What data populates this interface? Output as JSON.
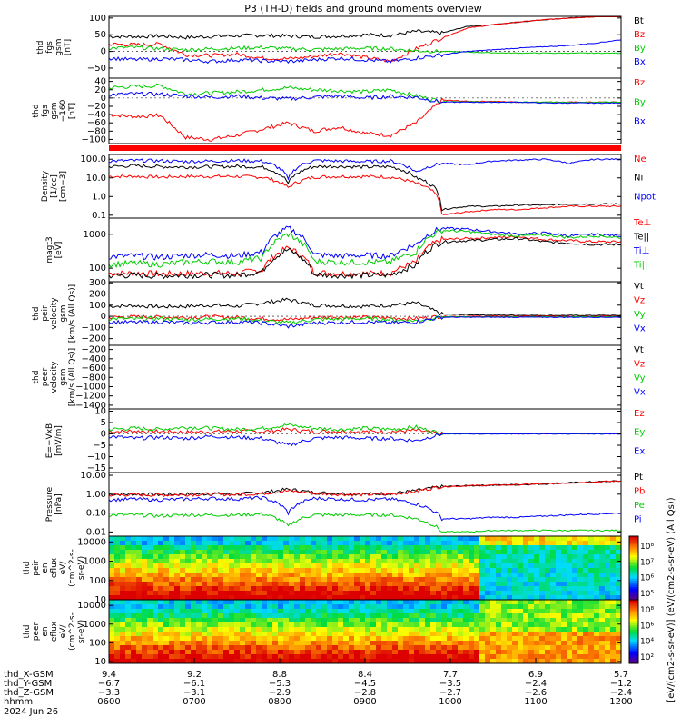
{
  "title": "P3 (TH-D) fields and ground moments overview",
  "chart_data": [
    {
      "type": "line",
      "ylabel_lines": [
        "thd",
        "fgs",
        "gsm",
        "[nT]"
      ],
      "y_ticks": [
        "100",
        "50",
        "0",
        "−50"
      ],
      "ylim": [
        -80,
        105
      ],
      "tick_values": [
        100,
        50,
        0,
        -50
      ],
      "series": [
        {
          "name": "Bt",
          "color": "#000000",
          "values": [
            45,
            44,
            46,
            42,
            45,
            47,
            48,
            46,
            44,
            46,
            50,
            48,
            60,
            55,
            75,
            80,
            88,
            95,
            100,
            104,
            110
          ]
        },
        {
          "name": "Bz",
          "color": "#ff0000",
          "values": [
            22,
            20,
            22,
            -10,
            -12,
            -8,
            -20,
            -22,
            -15,
            -5,
            -18,
            -30,
            8,
            40,
            70,
            80,
            88,
            95,
            100,
            104,
            110
          ]
        },
        {
          "name": "By",
          "color": "#00cc00",
          "values": [
            10,
            12,
            8,
            5,
            8,
            10,
            12,
            8,
            6,
            8,
            10,
            8,
            2,
            0,
            -2,
            -4,
            -5,
            -5,
            -5,
            -5,
            -5
          ]
        },
        {
          "name": "Bx",
          "color": "#0000ff",
          "values": [
            -20,
            -25,
            -22,
            -25,
            -30,
            -25,
            -28,
            -30,
            -25,
            -20,
            -25,
            -30,
            -20,
            -10,
            0,
            5,
            10,
            14,
            18,
            25,
            35
          ]
        }
      ]
    },
    {
      "type": "line",
      "ylabel_lines": [
        "thd",
        "fgs",
        "gsm",
        "−160",
        "[nT]"
      ],
      "y_ticks": [
        "40",
        "20",
        "0",
        "−20",
        "−40",
        "−60",
        "−80",
        "−100"
      ],
      "ylim": [
        -110,
        48
      ],
      "tick_values": [
        40,
        20,
        0,
        -20,
        -40,
        -60,
        -80,
        -100
      ],
      "series": [
        {
          "name": "Bz",
          "color": "#ff0000",
          "values": [
            -40,
            -45,
            -42,
            -95,
            -100,
            -90,
            -75,
            -60,
            -80,
            -70,
            -85,
            -90,
            -60,
            -5,
            -8,
            -8,
            -10,
            -10,
            -10,
            -10,
            -10
          ]
        },
        {
          "name": "By",
          "color": "#00cc00",
          "values": [
            25,
            28,
            30,
            10,
            12,
            15,
            20,
            25,
            20,
            18,
            15,
            20,
            5,
            -8,
            -9,
            -10,
            -10,
            -10,
            -10,
            -10,
            -10
          ]
        },
        {
          "name": "Bx",
          "color": "#0000ff",
          "values": [
            8,
            10,
            9,
            5,
            2,
            5,
            0,
            -2,
            2,
            5,
            0,
            4,
            2,
            -10,
            -10,
            -10,
            -10,
            -12,
            -12,
            -12,
            -12
          ]
        }
      ]
    },
    {
      "type": "line",
      "log": true,
      "ylabel_lines": [
        "Density",
        "[1/cc]",
        "[cm−3]"
      ],
      "y_ticks": [
        "100.0",
        "10.0",
        "1.0",
        "0.1"
      ],
      "ylim": [
        0.07,
        180
      ],
      "tick_values": [
        100,
        10,
        1,
        0.1
      ],
      "series": [
        {
          "name": "Ne",
          "color": "#ff0000",
          "values": [
            12,
            12,
            11,
            12,
            12,
            12,
            11,
            3,
            11,
            12,
            12,
            11,
            5,
            0.1,
            0.15,
            0.2,
            0.2,
            0.25,
            0.3,
            0.3,
            0.3
          ]
        },
        {
          "name": "Ni",
          "color": "#000000",
          "values": [
            40,
            45,
            40,
            38,
            40,
            42,
            38,
            5,
            40,
            42,
            38,
            40,
            10,
            0.2,
            0.3,
            0.3,
            0.35,
            0.35,
            0.4,
            0.4,
            0.4
          ]
        },
        {
          "name": "Npot",
          "color": "#0000ff",
          "values": [
            80,
            85,
            82,
            75,
            80,
            85,
            78,
            8,
            85,
            80,
            75,
            80,
            20,
            60,
            50,
            80,
            90,
            100,
            60,
            100,
            100
          ]
        }
      ]
    },
    {
      "type": "line",
      "log": true,
      "ylabel_lines": [
        "magt3",
        "[eV]"
      ],
      "y_ticks": [
        "1000",
        "100"
      ],
      "ylim": [
        40,
        3000
      ],
      "tick_values": [
        1000,
        100
      ],
      "series": [
        {
          "name": "Te⊥",
          "color": "#ff0000",
          "values": [
            70,
            72,
            68,
            70,
            72,
            70,
            90,
            400,
            75,
            70,
            70,
            72,
            150,
            700,
            750,
            800,
            850,
            700,
            650,
            600,
            600
          ]
        },
        {
          "name": "Te||",
          "color": "#000000",
          "values": [
            60,
            62,
            60,
            62,
            63,
            62,
            80,
            350,
            65,
            62,
            62,
            63,
            120,
            600,
            650,
            700,
            750,
            600,
            550,
            500,
            500
          ]
        },
        {
          "name": "Ti⊥",
          "color": "#0000ff",
          "values": [
            220,
            230,
            210,
            240,
            250,
            230,
            300,
            1500,
            250,
            230,
            240,
            230,
            500,
            1500,
            1400,
            1200,
            1000,
            1100,
            900,
            1000,
            900
          ]
        },
        {
          "name": "Ti||",
          "color": "#00cc00",
          "values": [
            130,
            140,
            130,
            150,
            160,
            150,
            200,
            1000,
            160,
            150,
            150,
            150,
            300,
            1300,
            1200,
            1000,
            900,
            950,
            800,
            900,
            800
          ]
        }
      ]
    },
    {
      "type": "line",
      "ylabel_lines": [
        "thd",
        "peir",
        "velocity",
        "gsm",
        "[km/s (All Qs)]"
      ],
      "y_ticks": [
        "300",
        "200",
        "100",
        "0",
        "−100",
        "−200"
      ],
      "ylim": [
        -260,
        310
      ],
      "tick_values": [
        300,
        200,
        100,
        0,
        -100,
        -200
      ],
      "series": [
        {
          "name": "Vt",
          "color": "#000000",
          "values": [
            90,
            95,
            85,
            90,
            100,
            90,
            120,
            150,
            100,
            95,
            90,
            100,
            120,
            20,
            15,
            10,
            10,
            8,
            8,
            8,
            8
          ]
        },
        {
          "name": "Vz",
          "color": "#ff0000",
          "values": [
            -10,
            -5,
            -8,
            -10,
            -5,
            -10,
            -20,
            -30,
            -10,
            -5,
            -10,
            -15,
            -20,
            0,
            0,
            0,
            0,
            0,
            0,
            0,
            0
          ]
        },
        {
          "name": "Vy",
          "color": "#00cc00",
          "values": [
            -20,
            -25,
            -20,
            -30,
            -25,
            -20,
            -40,
            -60,
            -30,
            -25,
            -20,
            -30,
            -40,
            -5,
            -5,
            -5,
            -5,
            -5,
            -5,
            -5,
            -5
          ]
        },
        {
          "name": "Vx",
          "color": "#0000ff",
          "values": [
            -50,
            -55,
            -50,
            -60,
            -55,
            -50,
            -60,
            -90,
            -60,
            -55,
            -50,
            -60,
            -50,
            -8,
            -8,
            -8,
            -8,
            -8,
            -8,
            -8,
            -8
          ]
        }
      ]
    },
    {
      "type": "line",
      "ylabel_lines": [
        "thd",
        "peer",
        "velocity",
        "gsm",
        "[km/s (All Qs)]"
      ],
      "y_ticks": [
        "−200",
        "−400",
        "−600",
        "−800",
        "−1000",
        "−1200",
        "−1400"
      ],
      "ylim": [
        -1480,
        -110
      ],
      "tick_values": [
        -200,
        -400,
        -600,
        -800,
        -1000,
        -1200,
        -1400
      ],
      "series": [
        {
          "name": "Vt",
          "color": "#000000",
          "values": []
        },
        {
          "name": "Vz",
          "color": "#ff0000",
          "values": []
        },
        {
          "name": "Vy",
          "color": "#00cc00",
          "values": []
        },
        {
          "name": "Vx",
          "color": "#0000ff",
          "values": []
        }
      ]
    },
    {
      "type": "line",
      "ylabel_lines": [
        "E=−VxB",
        "[mV/m]"
      ],
      "y_ticks": [
        "10",
        "5",
        "0",
        "−5",
        "−10",
        "−15"
      ],
      "ylim": [
        -17,
        11
      ],
      "tick_values": [
        10,
        5,
        0,
        -5,
        -10,
        -15
      ],
      "series": [
        {
          "name": "Ez",
          "color": "#ff0000",
          "values": [
            1,
            1.2,
            1,
            0.8,
            1,
            1.2,
            1,
            2,
            1,
            1.2,
            1,
            1,
            1.5,
            0.1,
            0.1,
            0.1,
            0.1,
            0.1,
            0.1,
            0.1,
            0.1
          ]
        },
        {
          "name": "Ey",
          "color": "#00cc00",
          "values": [
            2,
            2.5,
            2,
            3,
            2.5,
            2,
            2.5,
            4,
            2.5,
            2,
            2.5,
            2,
            3,
            0.1,
            0.1,
            0.1,
            0.1,
            0.1,
            0.1,
            0.1,
            0.1
          ]
        },
        {
          "name": "Ex",
          "color": "#0000ff",
          "values": [
            -1,
            -2,
            -1.5,
            -2,
            -1,
            -1.5,
            -2,
            -5,
            -2,
            -1.5,
            -2,
            -2,
            -3,
            0,
            0,
            0,
            0,
            0,
            0,
            0,
            0
          ]
        }
      ]
    },
    {
      "type": "line",
      "log": true,
      "ylabel_lines": [
        "Pressure",
        "[nPa]"
      ],
      "y_ticks": [
        "10.00",
        "1.00",
        "0.10",
        "0.01"
      ],
      "ylim": [
        0.006,
        14
      ],
      "tick_values": [
        10,
        1,
        0.1,
        0.01
      ],
      "series": [
        {
          "name": "Pt",
          "color": "#000000",
          "values": [
            1.0,
            1.0,
            0.95,
            1.0,
            1.05,
            1.0,
            1.2,
            1.8,
            1.2,
            1.1,
            1.0,
            1.1,
            1.5,
            2.5,
            2.8,
            3.0,
            3.2,
            3.5,
            4.0,
            4.5,
            5.0
          ]
        },
        {
          "name": "Pb",
          "color": "#ff0000",
          "values": [
            0.9,
            0.95,
            0.9,
            0.95,
            1.0,
            0.95,
            1.1,
            1.5,
            1.1,
            1.0,
            0.95,
            1.0,
            1.4,
            2.5,
            2.8,
            3.0,
            3.2,
            3.5,
            4.0,
            4.5,
            5.0
          ]
        },
        {
          "name": "Pe",
          "color": "#00cc00",
          "values": [
            0.08,
            0.08,
            0.07,
            0.08,
            0.08,
            0.08,
            0.09,
            0.02,
            0.08,
            0.08,
            0.08,
            0.08,
            0.05,
            0.01,
            0.01,
            0.012,
            0.012,
            0.012,
            0.012,
            0.012,
            0.012
          ]
        },
        {
          "name": "Pi",
          "color": "#0000ff",
          "values": [
            0.5,
            0.55,
            0.5,
            0.55,
            0.6,
            0.55,
            0.65,
            0.1,
            0.6,
            0.55,
            0.5,
            0.55,
            0.3,
            0.05,
            0.05,
            0.06,
            0.06,
            0.07,
            0.08,
            0.09,
            0.1
          ]
        }
      ]
    },
    {
      "type": "heatmap",
      "ylabel_lines": [
        "thd",
        "peir",
        "en",
        "eflux",
        "eV/",
        "(cm^2-s-",
        "sr-eV)"
      ],
      "y_ticks": [
        "10000",
        "1000",
        "100",
        "10"
      ],
      "ylim_log": [
        1,
        4.3
      ],
      "tick_values": [
        10000,
        1000,
        100,
        10
      ],
      "colorbar_ticks": [
        "10⁸",
        "10⁷",
        "10⁶",
        "10⁵"
      ]
    },
    {
      "type": "heatmap",
      "ylabel_lines": [
        "thd",
        "peer",
        "en",
        "eflux",
        "eV/",
        "(cm^2-s-",
        "sr-eV)"
      ],
      "y_ticks": [
        "10000",
        "1000",
        "100",
        "10"
      ],
      "ylim_log": [
        0.9,
        4.3
      ],
      "tick_values": [
        10000,
        1000,
        100,
        10
      ],
      "colorbar_ticks": [
        "10⁸",
        "10⁶",
        "10⁴",
        "10²"
      ]
    }
  ],
  "colorbar_label": "[eV/(cm2-s-sr-eV)] (eV/(cm2-s-sr-eV) (All Qs))",
  "xaxis": {
    "row_labels": [
      "thd_X-GSM",
      "thd_Y-GSM",
      "thd_Z-GSM",
      "hhmm",
      "2024 Jun 26"
    ],
    "columns": [
      {
        "x": 0,
        "X": "9.4",
        "Y": "−6.7",
        "Z": "−3.3",
        "hhmm": "0600"
      },
      {
        "x": 1,
        "X": "9.2",
        "Y": "−6.1",
        "Z": "−3.1",
        "hhmm": "0700"
      },
      {
        "x": 2,
        "X": "8.8",
        "Y": "−5.3",
        "Z": "−2.9",
        "hhmm": "0800"
      },
      {
        "x": 3,
        "X": "8.4",
        "Y": "−4.5",
        "Z": "−2.8",
        "hhmm": "0900"
      },
      {
        "x": 4,
        "X": "7.7",
        "Y": "−3.5",
        "Z": "−2.7",
        "hhmm": "1000"
      },
      {
        "x": 5,
        "X": "6.9",
        "Y": "−2.4",
        "Z": "−2.6",
        "hhmm": "1100"
      },
      {
        "x": 6,
        "X": "5.7",
        "Y": "−1.2",
        "Z": "−2.4",
        "hhmm": "1200"
      }
    ]
  }
}
